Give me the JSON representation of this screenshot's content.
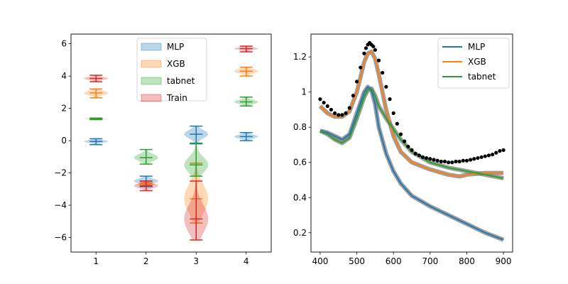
{
  "chart_data": [
    {
      "type": "violin",
      "title": "",
      "xlabel": "",
      "ylabel": "",
      "xlim": [
        0.5,
        4.5
      ],
      "ylim": [
        -6.9,
        6.6
      ],
      "x_ticks": [
        1,
        2,
        3,
        4
      ],
      "y_ticks": [
        -6,
        -4,
        -2,
        0,
        2,
        4,
        6
      ],
      "legend": {
        "placement": "top-center",
        "entries": [
          {
            "name": "MLP",
            "color": "#1f77b4"
          },
          {
            "name": "XGB",
            "color": "#ff7f0e"
          },
          {
            "name": "tabnet",
            "color": "#2ca02c"
          },
          {
            "name": "Train",
            "color": "#d62728"
          }
        ]
      },
      "series": [
        {
          "name": "MLP",
          "color": "#1f77b4",
          "violins": [
            {
              "x": 1,
              "min": -0.25,
              "mean": -0.05,
              "max": 0.12
            },
            {
              "x": 2,
              "min": -2.85,
              "mean": -2.5,
              "max": -2.2
            },
            {
              "x": 3,
              "min": -0.2,
              "mean": 0.4,
              "max": 0.9
            },
            {
              "x": 4,
              "min": 0.0,
              "mean": 0.25,
              "max": 0.5
            }
          ]
        },
        {
          "name": "XGB",
          "color": "#ff7f0e",
          "violins": [
            {
              "x": 1,
              "min": 2.65,
              "mean": 2.95,
              "max": 3.2
            },
            {
              "x": 2,
              "min": -2.8,
              "mean": -2.7,
              "max": -2.6
            },
            {
              "x": 3,
              "min": -5.1,
              "mean": -3.6,
              "max": -1.4
            },
            {
              "x": 4,
              "min": 4.0,
              "mean": 4.3,
              "max": 4.55
            }
          ]
        },
        {
          "name": "tabnet",
          "color": "#2ca02c",
          "violins": [
            {
              "x": 1,
              "min": 1.3,
              "mean": 1.35,
              "max": 1.4
            },
            {
              "x": 2,
              "min": -1.45,
              "mean": -1.05,
              "max": -0.55
            },
            {
              "x": 3,
              "min": -2.2,
              "mean": -1.5,
              "max": -0.15
            },
            {
              "x": 4,
              "min": 2.15,
              "mean": 2.4,
              "max": 2.7
            }
          ]
        },
        {
          "name": "Train",
          "color": "#d62728",
          "violins": [
            {
              "x": 1,
              "min": 3.65,
              "mean": 3.85,
              "max": 4.05
            },
            {
              "x": 2,
              "min": -3.1,
              "mean": -2.8,
              "max": -2.5
            },
            {
              "x": 3,
              "min": -6.15,
              "mean": -4.85,
              "max": -2.5
            },
            {
              "x": 4,
              "min": 5.5,
              "mean": 5.7,
              "max": 5.85
            }
          ]
        }
      ]
    },
    {
      "type": "line",
      "title": "",
      "xlabel": "",
      "ylabel": "",
      "xlim": [
        375,
        925
      ],
      "ylim": [
        0.09,
        1.33
      ],
      "x_ticks": [
        400,
        500,
        600,
        700,
        800,
        900
      ],
      "y_ticks": [
        0.2,
        0.4,
        0.6,
        0.8,
        1.0,
        1.2
      ],
      "legend": {
        "placement": "top-right",
        "entries": [
          {
            "name": "MLP",
            "color": "#1f77b4"
          },
          {
            "name": "XGB",
            "color": "#ff7f0e"
          },
          {
            "name": "tabnet",
            "color": "#2ca02c"
          }
        ]
      },
      "series": [
        {
          "name": "MLP",
          "color": "#1f77b4",
          "x": [
            400,
            420,
            440,
            460,
            480,
            500,
            520,
            530,
            540,
            550,
            560,
            580,
            600,
            620,
            650,
            700,
            750,
            800,
            850,
            900
          ],
          "y": [
            0.78,
            0.77,
            0.75,
            0.73,
            0.76,
            0.88,
            1.0,
            1.03,
            1.01,
            0.93,
            0.8,
            0.65,
            0.55,
            0.48,
            0.41,
            0.35,
            0.3,
            0.25,
            0.2,
            0.16
          ]
        },
        {
          "name": "XGB",
          "color": "#ff7f0e",
          "x": [
            400,
            420,
            440,
            460,
            480,
            500,
            520,
            530,
            540,
            550,
            560,
            580,
            600,
            620,
            650,
            700,
            750,
            780,
            800,
            850,
            900
          ],
          "y": [
            0.92,
            0.88,
            0.86,
            0.86,
            0.89,
            1.0,
            1.17,
            1.22,
            1.23,
            1.19,
            1.1,
            0.9,
            0.75,
            0.66,
            0.6,
            0.56,
            0.53,
            0.52,
            0.53,
            0.54,
            0.54
          ]
        },
        {
          "name": "tabnet",
          "color": "#2ca02c",
          "x": [
            400,
            420,
            440,
            460,
            480,
            500,
            520,
            530,
            540,
            550,
            560,
            580,
            600,
            620,
            650,
            700,
            750,
            800,
            850,
            900
          ],
          "y": [
            0.78,
            0.76,
            0.73,
            0.71,
            0.74,
            0.85,
            0.97,
            1.01,
            1.02,
            0.98,
            0.92,
            0.85,
            0.79,
            0.73,
            0.66,
            0.6,
            0.57,
            0.55,
            0.53,
            0.51
          ]
        },
        {
          "name": "",
          "color": "#000000",
          "style": "dots",
          "x": [
            400,
            410,
            420,
            430,
            440,
            450,
            460,
            470,
            480,
            490,
            500,
            510,
            520,
            525,
            530,
            535,
            540,
            545,
            550,
            560,
            570,
            580,
            590,
            600,
            610,
            620,
            630,
            640,
            650,
            660,
            670,
            680,
            690,
            700,
            710,
            720,
            730,
            740,
            750,
            760,
            770,
            780,
            790,
            800,
            810,
            820,
            830,
            840,
            850,
            860,
            870,
            880,
            890,
            900
          ],
          "y": [
            0.96,
            0.94,
            0.92,
            0.9,
            0.88,
            0.87,
            0.87,
            0.88,
            0.91,
            0.98,
            1.06,
            1.14,
            1.22,
            1.25,
            1.27,
            1.28,
            1.27,
            1.26,
            1.24,
            1.18,
            1.11,
            1.03,
            0.96,
            0.88,
            0.82,
            0.76,
            0.72,
            0.69,
            0.67,
            0.65,
            0.64,
            0.63,
            0.625,
            0.62,
            0.615,
            0.61,
            0.605,
            0.605,
            0.6,
            0.6,
            0.605,
            0.605,
            0.61,
            0.61,
            0.615,
            0.62,
            0.625,
            0.63,
            0.635,
            0.64,
            0.645,
            0.655,
            0.665,
            0.67
          ]
        }
      ]
    }
  ]
}
